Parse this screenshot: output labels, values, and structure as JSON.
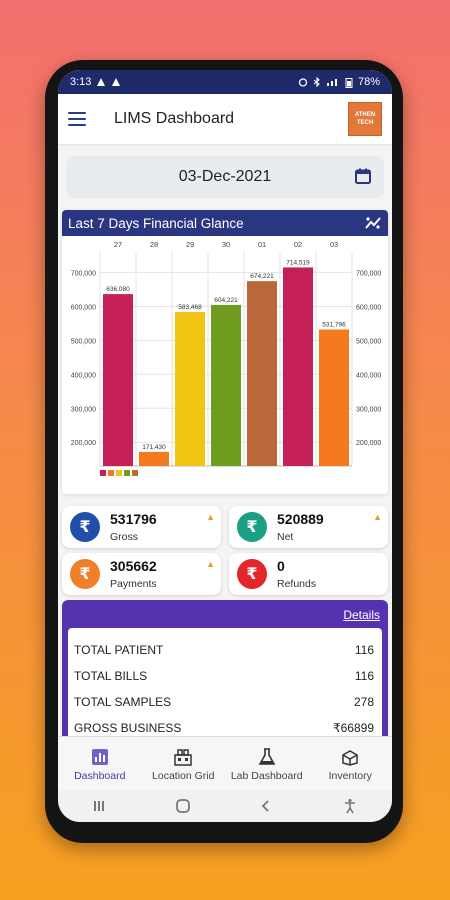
{
  "status": {
    "time": "3:13",
    "battery": "78%"
  },
  "app": {
    "title": "LIMS Dashboard",
    "logo_line1": "ATHEN",
    "logo_line2": "TECH"
  },
  "date_picker": {
    "value": "03-Dec-2021"
  },
  "financial": {
    "heading": "Last 7 Days Financial Glance"
  },
  "chart_data": {
    "type": "bar",
    "categories": [
      "27",
      "28",
      "29",
      "30",
      "01",
      "02",
      "03"
    ],
    "values": [
      636080,
      171430,
      583468,
      604221,
      674221,
      714519,
      531796
    ],
    "data_labels": [
      "636,080",
      "171,430",
      "583,468",
      "604,221",
      "674,221",
      "714,519",
      "531,796"
    ],
    "colors": [
      "#c41f58",
      "#f57a1f",
      "#f2c515",
      "#6e9c1d",
      "#b8683b",
      "#c41f58",
      "#f57a1f"
    ],
    "y_ticks": [
      "700,000",
      "600,000",
      "500,000",
      "400,000",
      "300,000",
      "200,000"
    ],
    "y_tick_values": [
      700000,
      600000,
      500000,
      400000,
      300000,
      200000
    ],
    "ylim": [
      130000,
      760000
    ],
    "grid": true
  },
  "tiles": [
    {
      "value": "531796",
      "label": "Gross",
      "color": "#1f4fa8",
      "icon": "rupee-icon"
    },
    {
      "value": "520889",
      "label": "Net",
      "color": "#1aa184",
      "icon": "rupee-icon"
    },
    {
      "value": "305662",
      "label": "Payments",
      "color": "#f07f2a",
      "icon": "rupee-icon"
    },
    {
      "value": "0",
      "label": "Refunds",
      "color": "#e3262b",
      "icon": "rupee-icon"
    }
  ],
  "details": {
    "link": "Details",
    "rows": [
      {
        "label": "TOTAL PATIENT",
        "value": "116"
      },
      {
        "label": "TOTAL BILLS",
        "value": "116"
      },
      {
        "label": "TOTAL SAMPLES",
        "value": "278"
      },
      {
        "label": "GROSS BUSINESS",
        "value": "₹66899"
      }
    ]
  },
  "nav": [
    {
      "label": "Dashboard",
      "icon": "dashboard-icon",
      "active": true
    },
    {
      "label": "Location Grid",
      "icon": "location-grid-icon",
      "active": false
    },
    {
      "label": "Lab Dashboard",
      "icon": "flask-icon",
      "active": false
    },
    {
      "label": "Inventory",
      "icon": "inventory-icon",
      "active": false
    }
  ]
}
